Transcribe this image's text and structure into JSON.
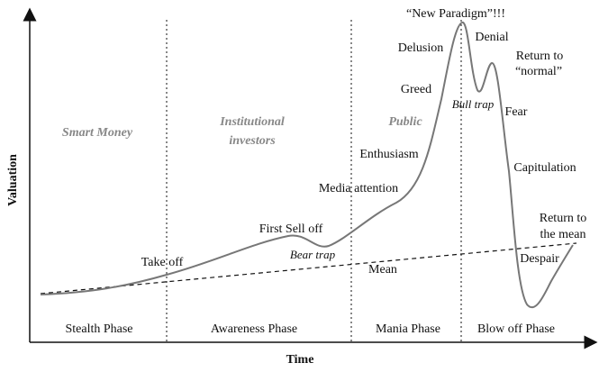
{
  "axes": {
    "y_label": "Valuation",
    "x_label": "Time"
  },
  "phases": [
    {
      "name": "Stealth Phase",
      "investors": [
        "Smart Money"
      ]
    },
    {
      "name": "Awareness Phase",
      "investors": [
        "Institutional",
        "investors"
      ]
    },
    {
      "name": "Mania Phase",
      "investors": [
        "Public"
      ]
    },
    {
      "name": "Blow off Phase",
      "investors": []
    }
  ],
  "annotations": {
    "take_off": "Take off",
    "first_sell_off": "First Sell off",
    "bear_trap": "Bear trap",
    "mean": "Mean",
    "media_attention": "Media attention",
    "enthusiasm": "Enthusiasm",
    "greed": "Greed",
    "delusion": "Delusion",
    "new_paradigm": "“New Paradigm”!!!",
    "denial": "Denial",
    "bull_trap": "Bull trap",
    "return_to_normal": [
      "Return to",
      "“normal”"
    ],
    "fear": "Fear",
    "capitulation": "Capitulation",
    "return_to_mean": [
      "Return to",
      "the mean"
    ],
    "despair": "Despair"
  }
}
